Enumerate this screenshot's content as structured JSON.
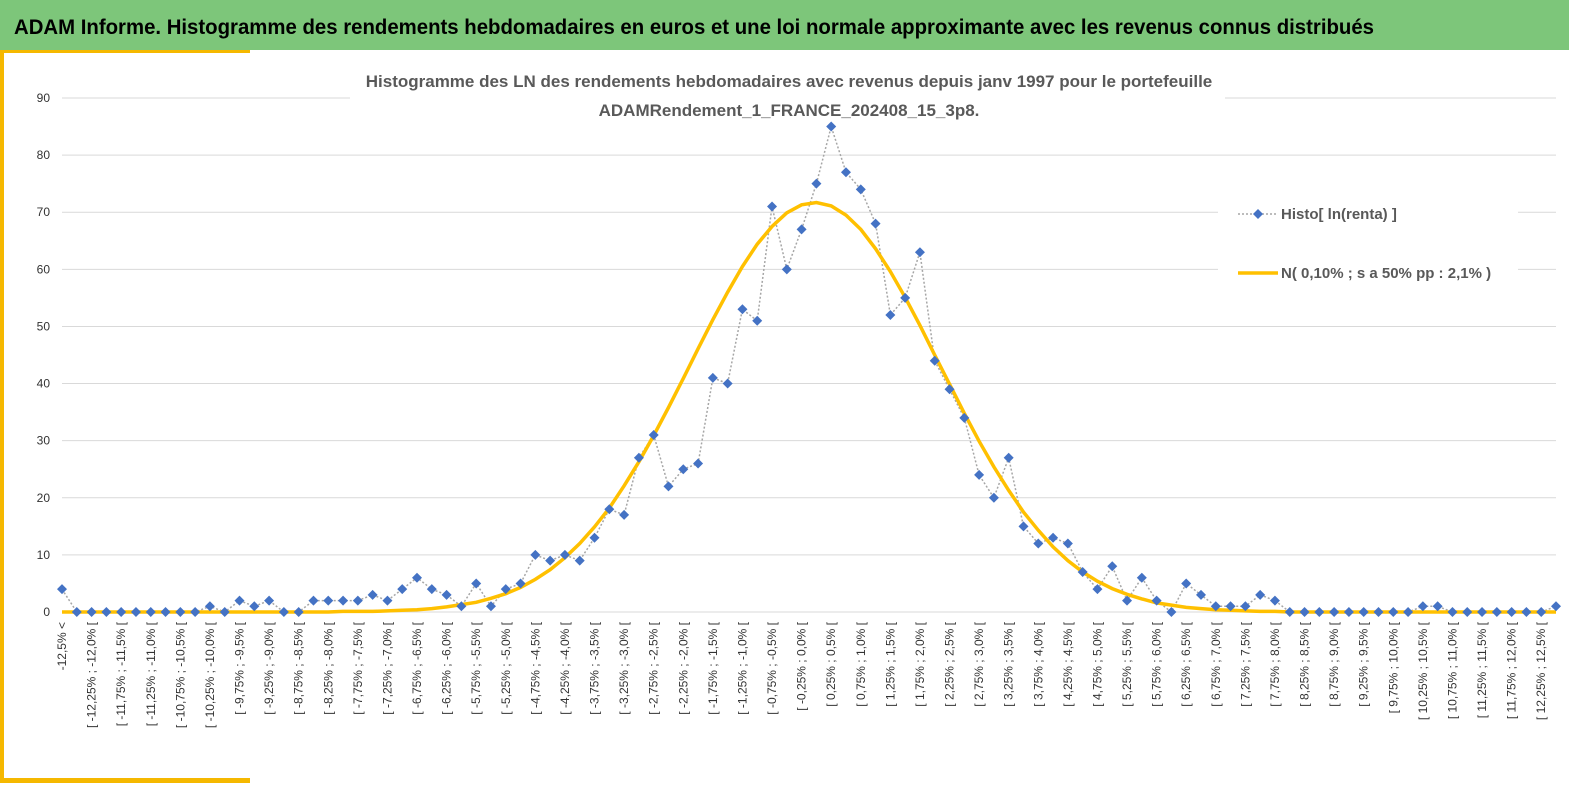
{
  "header": {
    "title": "ADAM Informe. Histogramme des rendements hebdomadaires en euros et une loi normale approximante avec les revenus connus distribués"
  },
  "chart_data": {
    "type": "line",
    "title": [
      "Histogramme des LN des rendements hebdomadaires avec revenus depuis janv 1997 pour le portefeuille",
      "ADAMRendement_1_FRANCE_202408_15_3p8."
    ],
    "categories": [
      "-12,5% <",
      null,
      "[ -12,25% ; -12,0% [",
      null,
      "[ -11,75% ; -11,5% [",
      null,
      "[ -11,25% ; -11,0% [",
      null,
      "[ -10,75% ; -10,5% [",
      null,
      "[ -10,25% ; -10,0% [",
      null,
      "[ -9,75% ; -9,5% [",
      null,
      "[ -9,25% ; -9,0% [",
      null,
      "[ -8,75% ; -8,5% [",
      null,
      "[ -8,25% ; -8,0% [",
      null,
      "[ -7,75% ; -7,5% [",
      null,
      "[ -7,25% ; -7,0% [",
      null,
      "[ -6,75% ; -6,5% [",
      null,
      "[ -6,25% ; -6,0% [",
      null,
      "[ -5,75% ; -5,5% [",
      null,
      "[ -5,25% ; -5,0% [",
      null,
      "[ -4,75% ; -4,5% [",
      null,
      "[ -4,25% ; -4,0% [",
      null,
      "[ -3,75% ; -3,5% [",
      null,
      "[ -3,25% ; -3,0% [",
      null,
      "[ -2,75% ; -2,5% [",
      null,
      "[ -2,25% ; -2,0% [",
      null,
      "[ -1,75% ; -1,5% [",
      null,
      "[ -1,25% ; -1,0% [",
      null,
      "[ -0,75% ; -0,5% [",
      null,
      "[ -0,25% ; 0,0% [",
      null,
      "[ 0,25% ; 0,5% [",
      null,
      "[ 0,75% ; 1,0% [",
      null,
      "[ 1,25% ; 1,5% [",
      null,
      "[ 1,75% ; 2,0% [",
      null,
      "[ 2,25% ; 2,5% [",
      null,
      "[ 2,75% ; 3,0% [",
      null,
      "[ 3,25% ; 3,5% [",
      null,
      "[ 3,75% ; 4,0% [",
      null,
      "[ 4,25% ; 4,5% [",
      null,
      "[ 4,75% ; 5,0% [",
      null,
      "[ 5,25% ; 5,5% [",
      null,
      "[ 5,75% ; 6,0% [",
      null,
      "[ 6,25% ; 6,5% [",
      null,
      "[ 6,75% ; 7,0% [",
      null,
      "[ 7,25% ; 7,5% [",
      null,
      "[ 7,75% ; 8,0% [",
      null,
      "[ 8,25% ; 8,5% [",
      null,
      "[ 8,75% ; 9,0% [",
      null,
      "[ 9,25% ; 9,5% [",
      null,
      "[ 9,75% ; 10,0% [",
      null,
      "[ 10,25% ; 10,5% [",
      null,
      "[ 10,75% ; 11,0% [",
      null,
      "[ 11,25% ; 11,5% [",
      null,
      "[ 11,75% ; 12,0% [",
      null,
      "[ 12,25% ; 12,5% [",
      null
    ],
    "series": [
      {
        "name": "Histo[ ln(renta) ]",
        "color": "#4472c4",
        "values": [
          4,
          0,
          0,
          0,
          0,
          0,
          0,
          0,
          0,
          0,
          1,
          0,
          2,
          1,
          2,
          0,
          0,
          2,
          2,
          2,
          2,
          3,
          2,
          4,
          6,
          4,
          3,
          1,
          5,
          1,
          4,
          5,
          10,
          9,
          10,
          9,
          13,
          18,
          17,
          27,
          31,
          22,
          25,
          26,
          41,
          40,
          53,
          51,
          71,
          60,
          67,
          75,
          85,
          77,
          74,
          68,
          52,
          55,
          63,
          44,
          39,
          34,
          24,
          20,
          27,
          15,
          12,
          13,
          12,
          7,
          4,
          8,
          2,
          6,
          2,
          0,
          5,
          3,
          1,
          1,
          1,
          3,
          2,
          0,
          0,
          0,
          0,
          0,
          0,
          0,
          0,
          0,
          1,
          1,
          0,
          0,
          0,
          0,
          0,
          0,
          0,
          1
        ]
      },
      {
        "name": "N( 0,10% ; s a 50% pp : 2,1% )",
        "color": "#ffc000",
        "values": [
          0,
          0,
          0,
          0,
          0,
          0,
          0,
          0,
          0,
          0,
          0,
          0,
          0,
          0,
          0,
          0,
          0,
          0,
          0,
          0.1,
          0.1,
          0.1,
          0.2,
          0.3,
          0.4,
          0.6,
          0.9,
          1.3,
          1.7,
          2.4,
          3.2,
          4.3,
          5.7,
          7.4,
          9.5,
          12.0,
          14.9,
          18.2,
          22.1,
          26.3,
          30.9,
          35.8,
          40.9,
          46.1,
          51.2,
          56.0,
          60.5,
          64.4,
          67.5,
          69.9,
          71.3,
          71.7,
          71.1,
          69.5,
          67.0,
          63.6,
          59.6,
          55.1,
          50.2,
          45.0,
          39.9,
          34.8,
          29.9,
          25.4,
          21.3,
          17.5,
          14.3,
          11.4,
          9.0,
          7.0,
          5.4,
          4.1,
          3.1,
          2.3,
          1.6,
          1.2,
          0.8,
          0.6,
          0.4,
          0.3,
          0.2,
          0.1,
          0.1,
          0,
          0,
          0,
          0,
          0,
          0,
          0,
          0,
          0,
          0,
          0,
          0,
          0,
          0,
          0,
          0,
          0,
          0,
          0
        ]
      }
    ],
    "ylim": [
      0,
      90
    ],
    "yticks": [
      0,
      10,
      20,
      30,
      40,
      50,
      60,
      70,
      80,
      90
    ],
    "grid": true,
    "legend": "right"
  }
}
